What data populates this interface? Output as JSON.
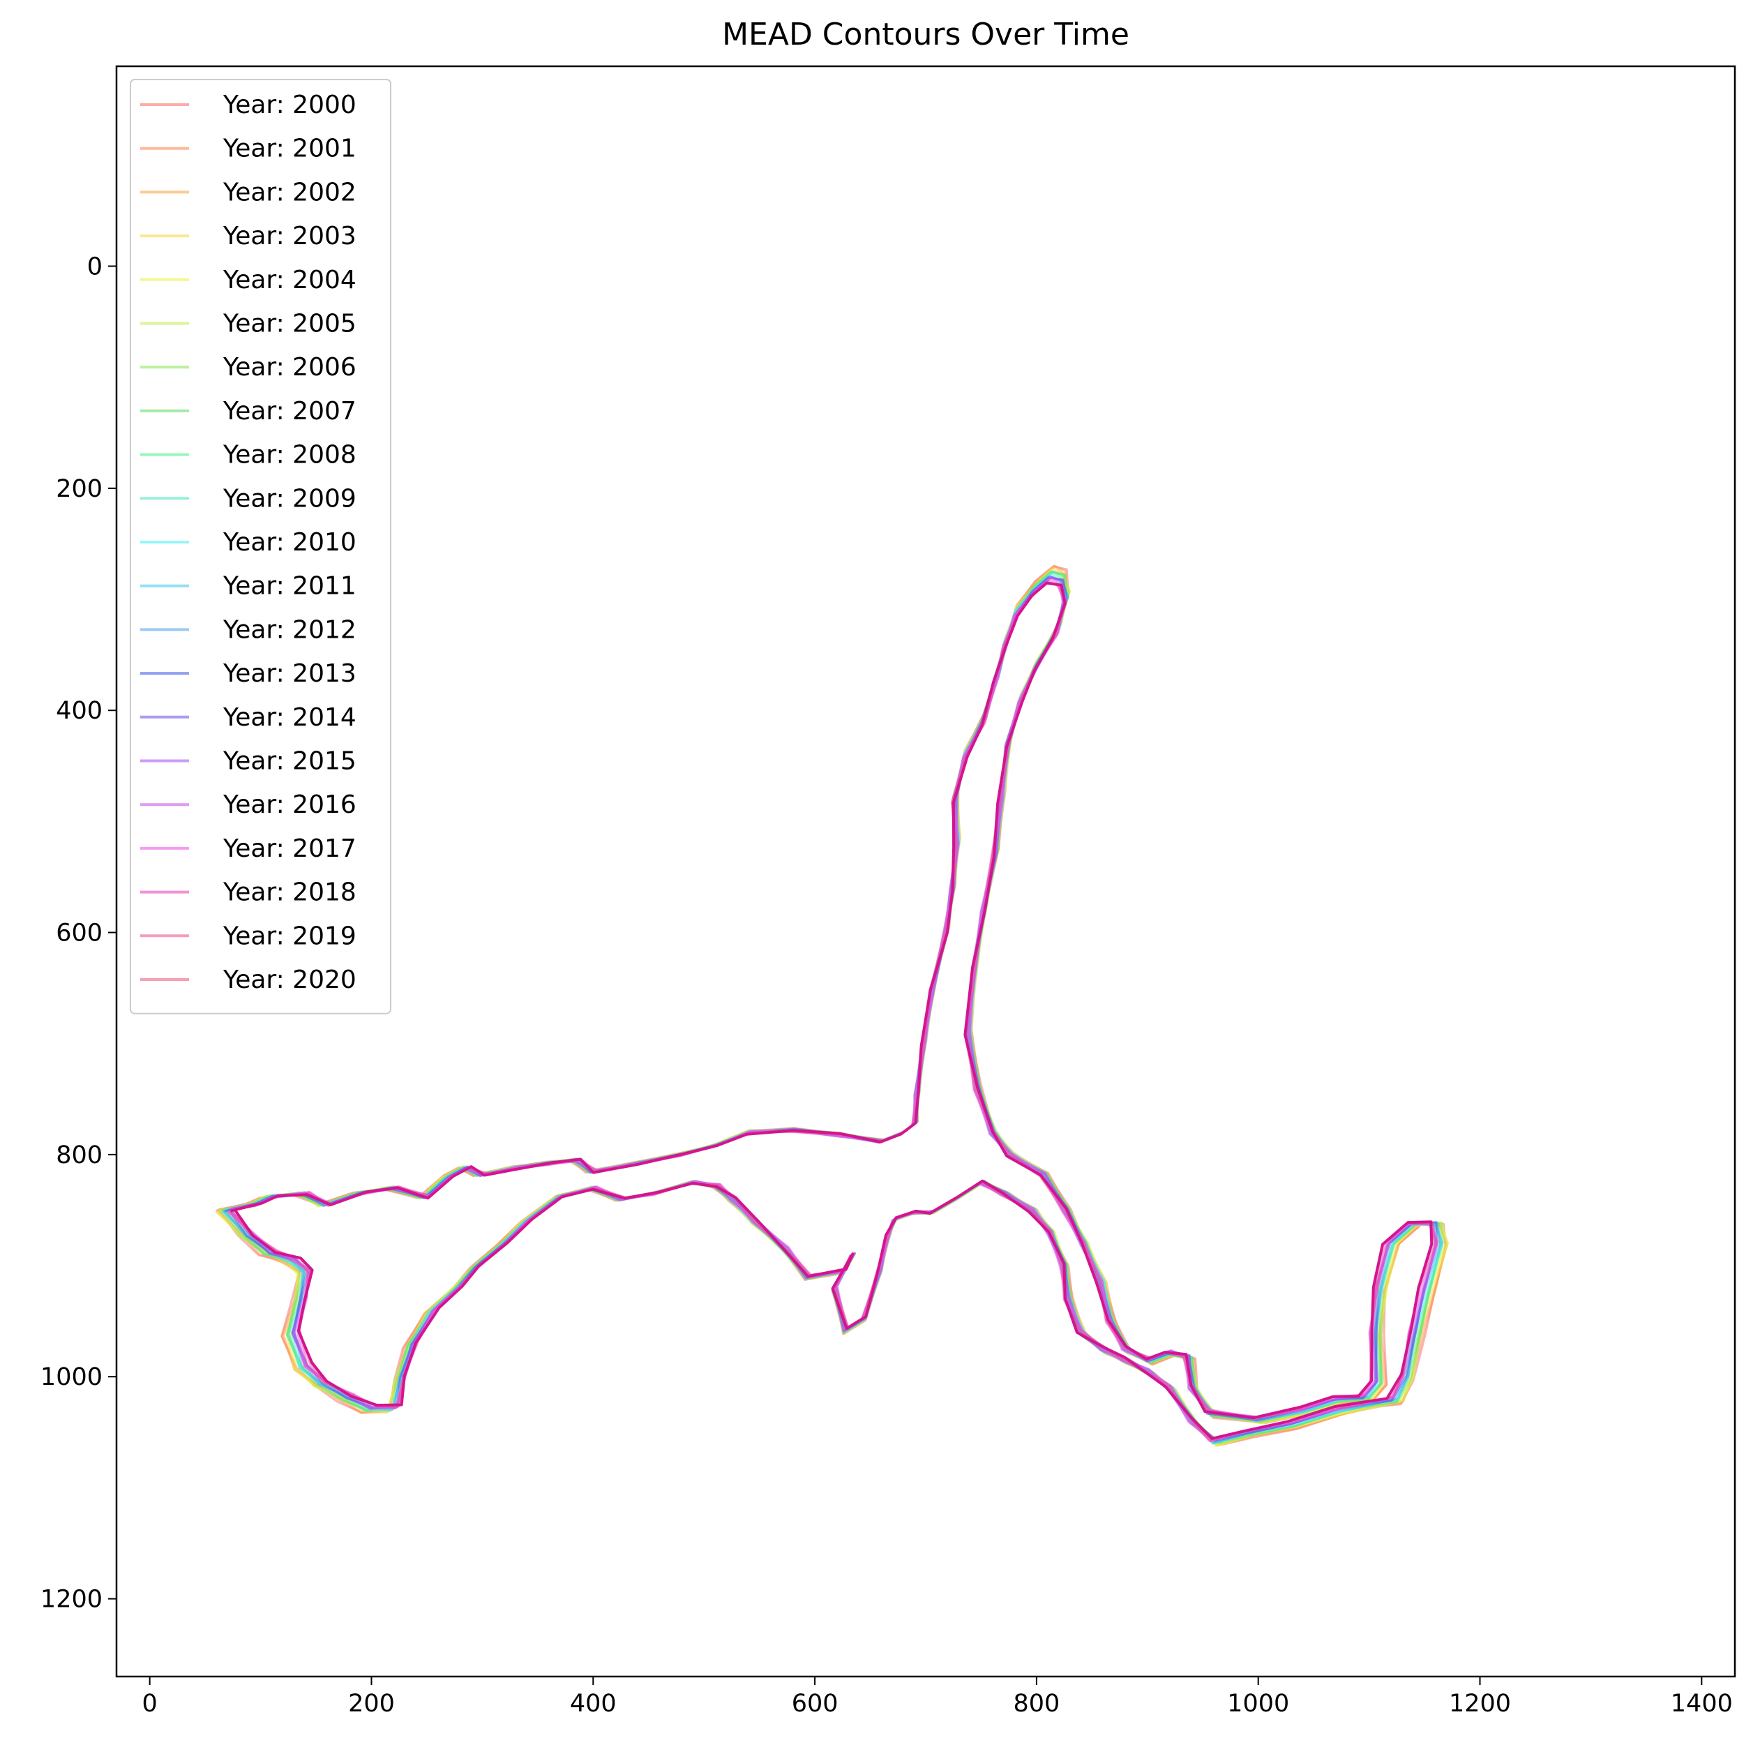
{
  "chart_data": {
    "type": "line",
    "title": "MEAD Contours Over Time",
    "xlabel": "",
    "ylabel": "",
    "xlim": [
      -30,
      1430
    ],
    "ylim": [
      1270,
      -180
    ],
    "y_inverted": true,
    "x_ticks": [
      0,
      200,
      400,
      600,
      800,
      1000,
      1200,
      1400
    ],
    "y_ticks": [
      0,
      200,
      400,
      600,
      800,
      1000,
      1200
    ],
    "grid": false,
    "legend_position": "upper left",
    "series": [
      {
        "name": "Year: 2000",
        "color": "#f8766d"
      },
      {
        "name": "Year: 2001",
        "color": "#fb8c5a"
      },
      {
        "name": "Year: 2002",
        "color": "#fca847"
      },
      {
        "name": "Year: 2003",
        "color": "#f7d94a"
      },
      {
        "name": "Year: 2004",
        "color": "#e6f34a"
      },
      {
        "name": "Year: 2005",
        "color": "#c2f052"
      },
      {
        "name": "Year: 2006",
        "color": "#8ee85a"
      },
      {
        "name": "Year: 2007",
        "color": "#62de6e"
      },
      {
        "name": "Year: 2008",
        "color": "#52f08e"
      },
      {
        "name": "Year: 2009",
        "color": "#52e8c0"
      },
      {
        "name": "Year: 2010",
        "color": "#52eef0"
      },
      {
        "name": "Year: 2011",
        "color": "#4fc9f0"
      },
      {
        "name": "Year: 2012",
        "color": "#5aa8ea"
      },
      {
        "name": "Year: 2013",
        "color": "#4a5fe8"
      },
      {
        "name": "Year: 2014",
        "color": "#7a5ae6"
      },
      {
        "name": "Year: 2015",
        "color": "#a85af0"
      },
      {
        "name": "Year: 2016",
        "color": "#c45ae6"
      },
      {
        "name": "Year: 2017",
        "color": "#ec5ae8"
      },
      {
        "name": "Year: 2018",
        "color": "#ee4ab8"
      },
      {
        "name": "Year: 2019",
        "color": "#f25a98"
      },
      {
        "name": "Year: 2020",
        "color": "#f2607a"
      }
    ],
    "contours": {
      "main_body": [
        [
          70,
          850
        ],
        [
          95,
          845
        ],
        [
          110,
          838
        ],
        [
          140,
          835
        ],
        [
          160,
          845
        ],
        [
          190,
          835
        ],
        [
          220,
          830
        ],
        [
          250,
          838
        ],
        [
          270,
          820
        ],
        [
          285,
          812
        ],
        [
          300,
          818
        ],
        [
          330,
          812
        ],
        [
          360,
          808
        ],
        [
          385,
          805
        ],
        [
          400,
          815
        ],
        [
          440,
          808
        ],
        [
          480,
          800
        ],
        [
          510,
          792
        ],
        [
          540,
          780
        ],
        [
          580,
          778
        ],
        [
          620,
          782
        ],
        [
          660,
          788
        ],
        [
          680,
          780
        ],
        [
          690,
          772
        ],
        [
          692,
          745
        ],
        [
          698,
          700
        ],
        [
          706,
          650
        ],
        [
          718,
          600
        ],
        [
          724,
          560
        ],
        [
          728,
          520
        ],
        [
          726,
          480
        ],
        [
          736,
          440
        ],
        [
          752,
          410
        ],
        [
          764,
          370
        ],
        [
          772,
          340
        ],
        [
          782,
          312
        ],
        [
          798,
          292
        ],
        [
          812,
          280
        ],
        [
          822,
          284
        ],
        [
          826,
          300
        ],
        [
          818,
          330
        ],
        [
          800,
          360
        ],
        [
          786,
          390
        ],
        [
          774,
          430
        ],
        [
          768,
          480
        ],
        [
          762,
          530
        ],
        [
          752,
          580
        ],
        [
          744,
          630
        ],
        [
          738,
          690
        ],
        [
          746,
          740
        ],
        [
          760,
          780
        ],
        [
          776,
          800
        ],
        [
          806,
          818
        ],
        [
          826,
          850
        ],
        [
          842,
          880
        ],
        [
          858,
          915
        ],
        [
          866,
          950
        ],
        [
          880,
          975
        ],
        [
          902,
          985
        ],
        [
          920,
          978
        ],
        [
          936,
          982
        ],
        [
          940,
          1010
        ],
        [
          956,
          1032
        ],
        [
          1000,
          1038
        ],
        [
          1040,
          1030
        ],
        [
          1070,
          1020
        ],
        [
          1096,
          1018
        ],
        [
          1106,
          1005
        ],
        [
          1104,
          960
        ],
        [
          1108,
          920
        ],
        [
          1118,
          880
        ],
        [
          1138,
          862
        ],
        [
          1158,
          862
        ],
        [
          1162,
          880
        ],
        [
          1150,
          920
        ],
        [
          1140,
          960
        ],
        [
          1132,
          1000
        ],
        [
          1122,
          1020
        ],
        [
          1100,
          1024
        ],
        [
          1070,
          1030
        ],
        [
          1030,
          1042
        ],
        [
          990,
          1050
        ],
        [
          960,
          1058
        ],
        [
          940,
          1040
        ],
        [
          920,
          1010
        ],
        [
          900,
          995
        ],
        [
          880,
          985
        ],
        [
          860,
          975
        ],
        [
          840,
          960
        ],
        [
          828,
          930
        ],
        [
          824,
          900
        ],
        [
          812,
          870
        ],
        [
          796,
          850
        ],
        [
          770,
          835
        ],
        [
          750,
          825
        ],
        [
          730,
          838
        ],
        [
          706,
          852
        ],
        [
          690,
          852
        ],
        [
          672,
          858
        ],
        [
          666,
          872
        ],
        [
          658,
          905
        ],
        [
          644,
          948
        ],
        [
          628,
          958
        ],
        [
          618,
          920
        ],
        [
          634,
          890
        ],
        [
          626,
          905
        ],
        [
          594,
          910
        ],
        [
          574,
          885
        ],
        [
          546,
          860
        ],
        [
          526,
          840
        ],
        [
          512,
          828
        ],
        [
          490,
          825
        ],
        [
          456,
          835
        ],
        [
          426,
          840
        ],
        [
          400,
          830
        ],
        [
          370,
          838
        ],
        [
          340,
          860
        ],
        [
          320,
          880
        ],
        [
          296,
          900
        ],
        [
          278,
          920
        ],
        [
          256,
          940
        ],
        [
          238,
          970
        ],
        [
          228,
          1000
        ],
        [
          222,
          1028
        ],
        [
          200,
          1028
        ],
        [
          180,
          1018
        ],
        [
          156,
          1005
        ],
        [
          140,
          990
        ],
        [
          130,
          960
        ],
        [
          138,
          930
        ],
        [
          142,
          905
        ],
        [
          130,
          895
        ],
        [
          110,
          888
        ],
        [
          90,
          872
        ],
        [
          70,
          850
        ]
      ]
    }
  }
}
